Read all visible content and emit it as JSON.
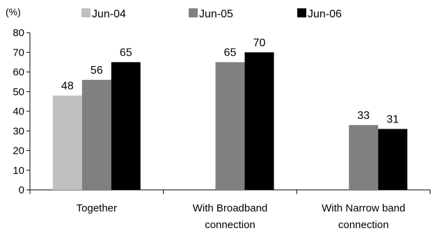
{
  "chart_data": {
    "type": "bar",
    "unit_label": "(%)",
    "categories": [
      "Together",
      "With Broadband connection",
      "With Narrow band connection"
    ],
    "category_lines": [
      [
        "Together"
      ],
      [
        "With Broadband",
        "connection"
      ],
      [
        "With Narrow band",
        "connection"
      ]
    ],
    "series": [
      {
        "name": "Jun-04",
        "color": "#c0c0c0",
        "values": [
          48,
          null,
          null
        ]
      },
      {
        "name": "Jun-05",
        "color": "#808080",
        "values": [
          56,
          65,
          33
        ]
      },
      {
        "name": "Jun-06",
        "color": "#000000",
        "values": [
          65,
          70,
          31
        ]
      }
    ],
    "yticks": [
      0,
      10,
      20,
      30,
      40,
      50,
      60,
      70,
      80
    ],
    "ylim": [
      0,
      80
    ],
    "grid": false,
    "legend": "top"
  }
}
